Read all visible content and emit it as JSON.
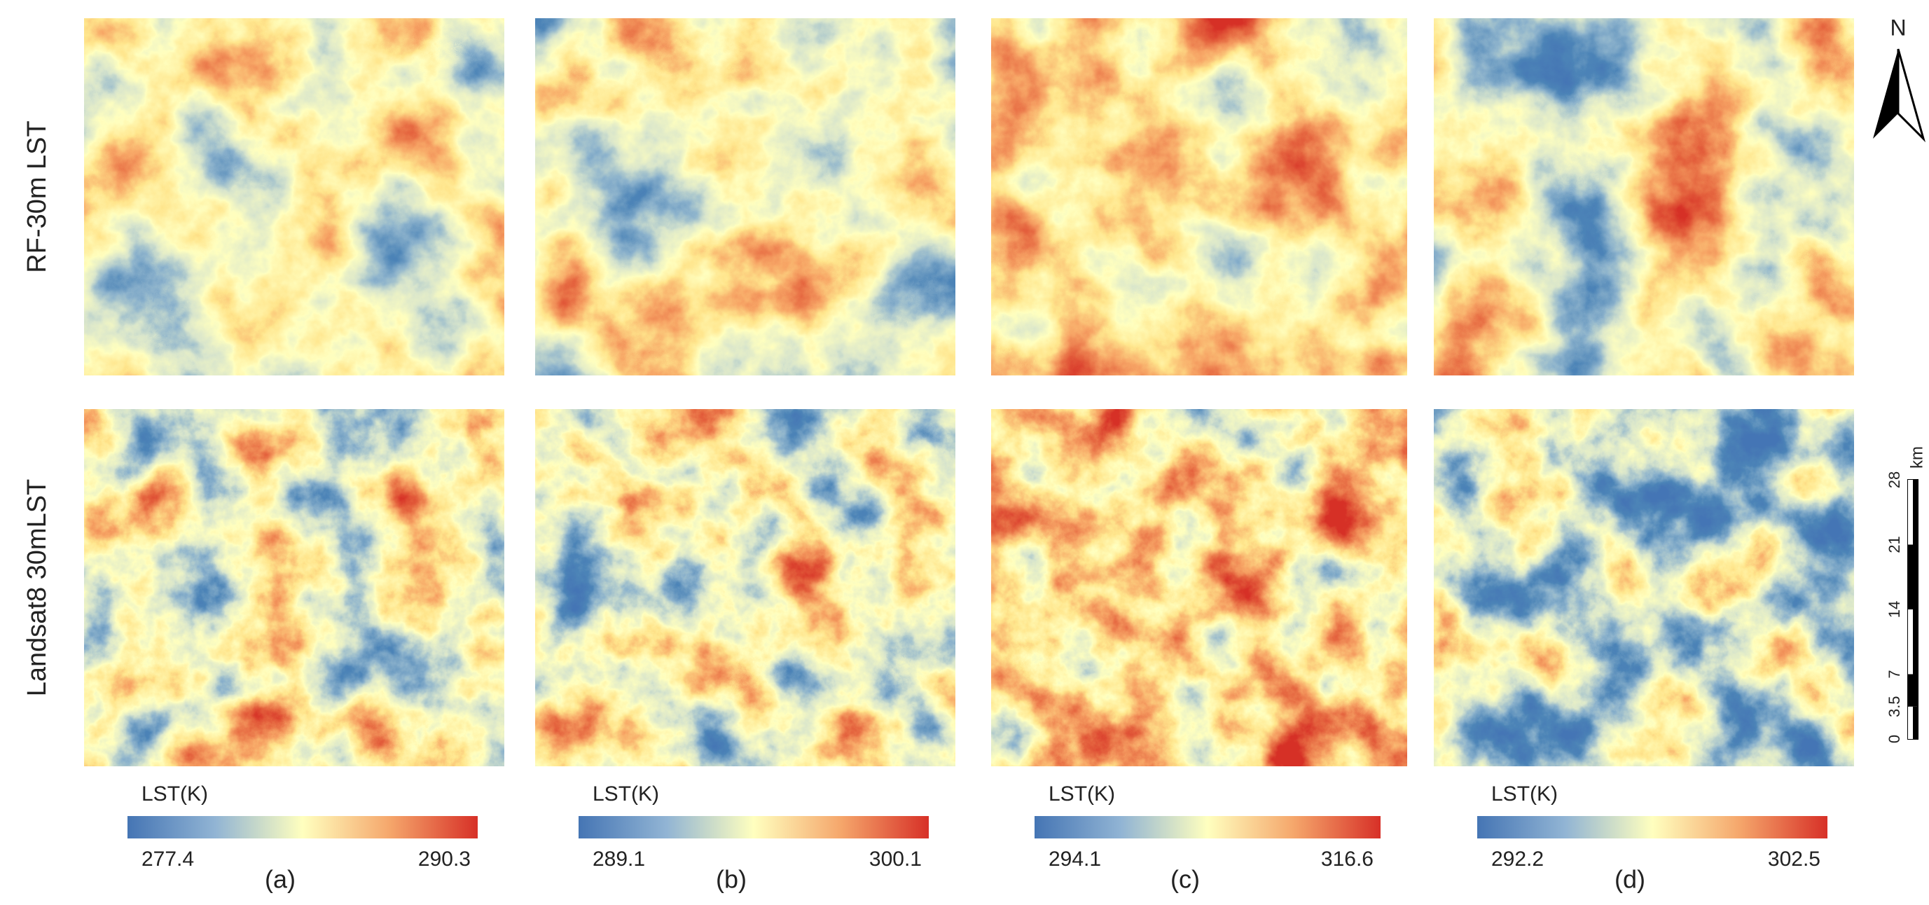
{
  "north": "N",
  "rows": [
    "RF-30m LST",
    "Landsat8 30mLST"
  ],
  "panels": [
    {
      "label": "(a)",
      "colorbar": {
        "title": "LST(K)",
        "min": 277.4,
        "max": 290.3
      }
    },
    {
      "label": "(b)",
      "colorbar": {
        "title": "LST(K)",
        "min": 289.1,
        "max": 300.1
      }
    },
    {
      "label": "(c)",
      "colorbar": {
        "title": "LST(K)",
        "min": 294.1,
        "max": 316.6
      }
    },
    {
      "label": "(d)",
      "colorbar": {
        "title": "LST(K)",
        "min": 292.2,
        "max": 302.5
      }
    }
  ],
  "scale_bar": {
    "unit": "km",
    "ticks": [
      0,
      3.5,
      7,
      14,
      21,
      28
    ]
  }
}
